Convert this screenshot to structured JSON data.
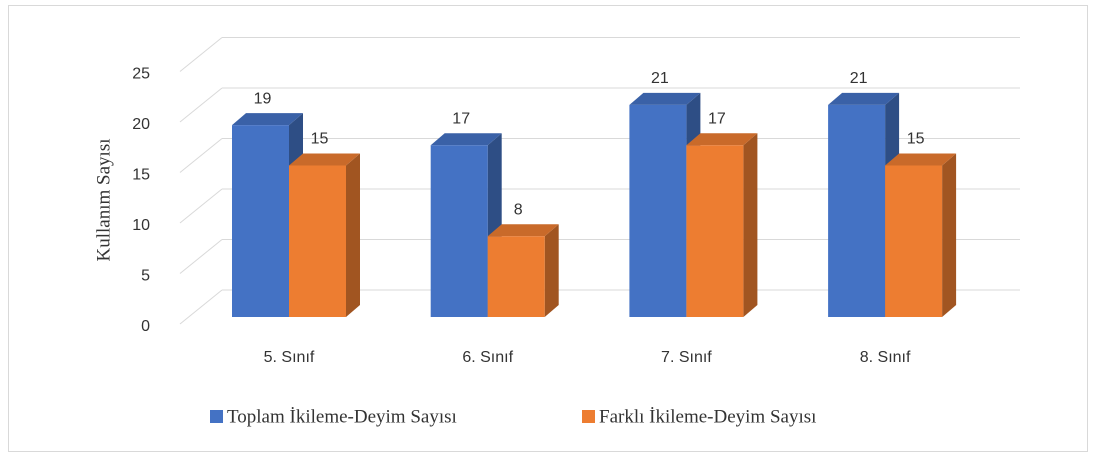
{
  "chart_data": {
    "type": "bar3d",
    "y_label": "Kullanım Sayısı",
    "categories": [
      "5. Sınıf",
      "6. Sınıf",
      "7. Sınıf",
      "8. Sınıf"
    ],
    "series": [
      {
        "name": "Toplam İkileme-Deyim Sayısı",
        "color": "#4472c4",
        "values": [
          19,
          17,
          21,
          21
        ]
      },
      {
        "name": "Farklı İkileme-Deyim Sayısı",
        "color": "#ed7d31",
        "values": [
          15,
          8,
          17,
          15
        ]
      }
    ],
    "ylim": [
      0,
      25
    ],
    "yticks": [
      0,
      5,
      10,
      15,
      20,
      25
    ],
    "grid": true,
    "legend": "bottom"
  }
}
